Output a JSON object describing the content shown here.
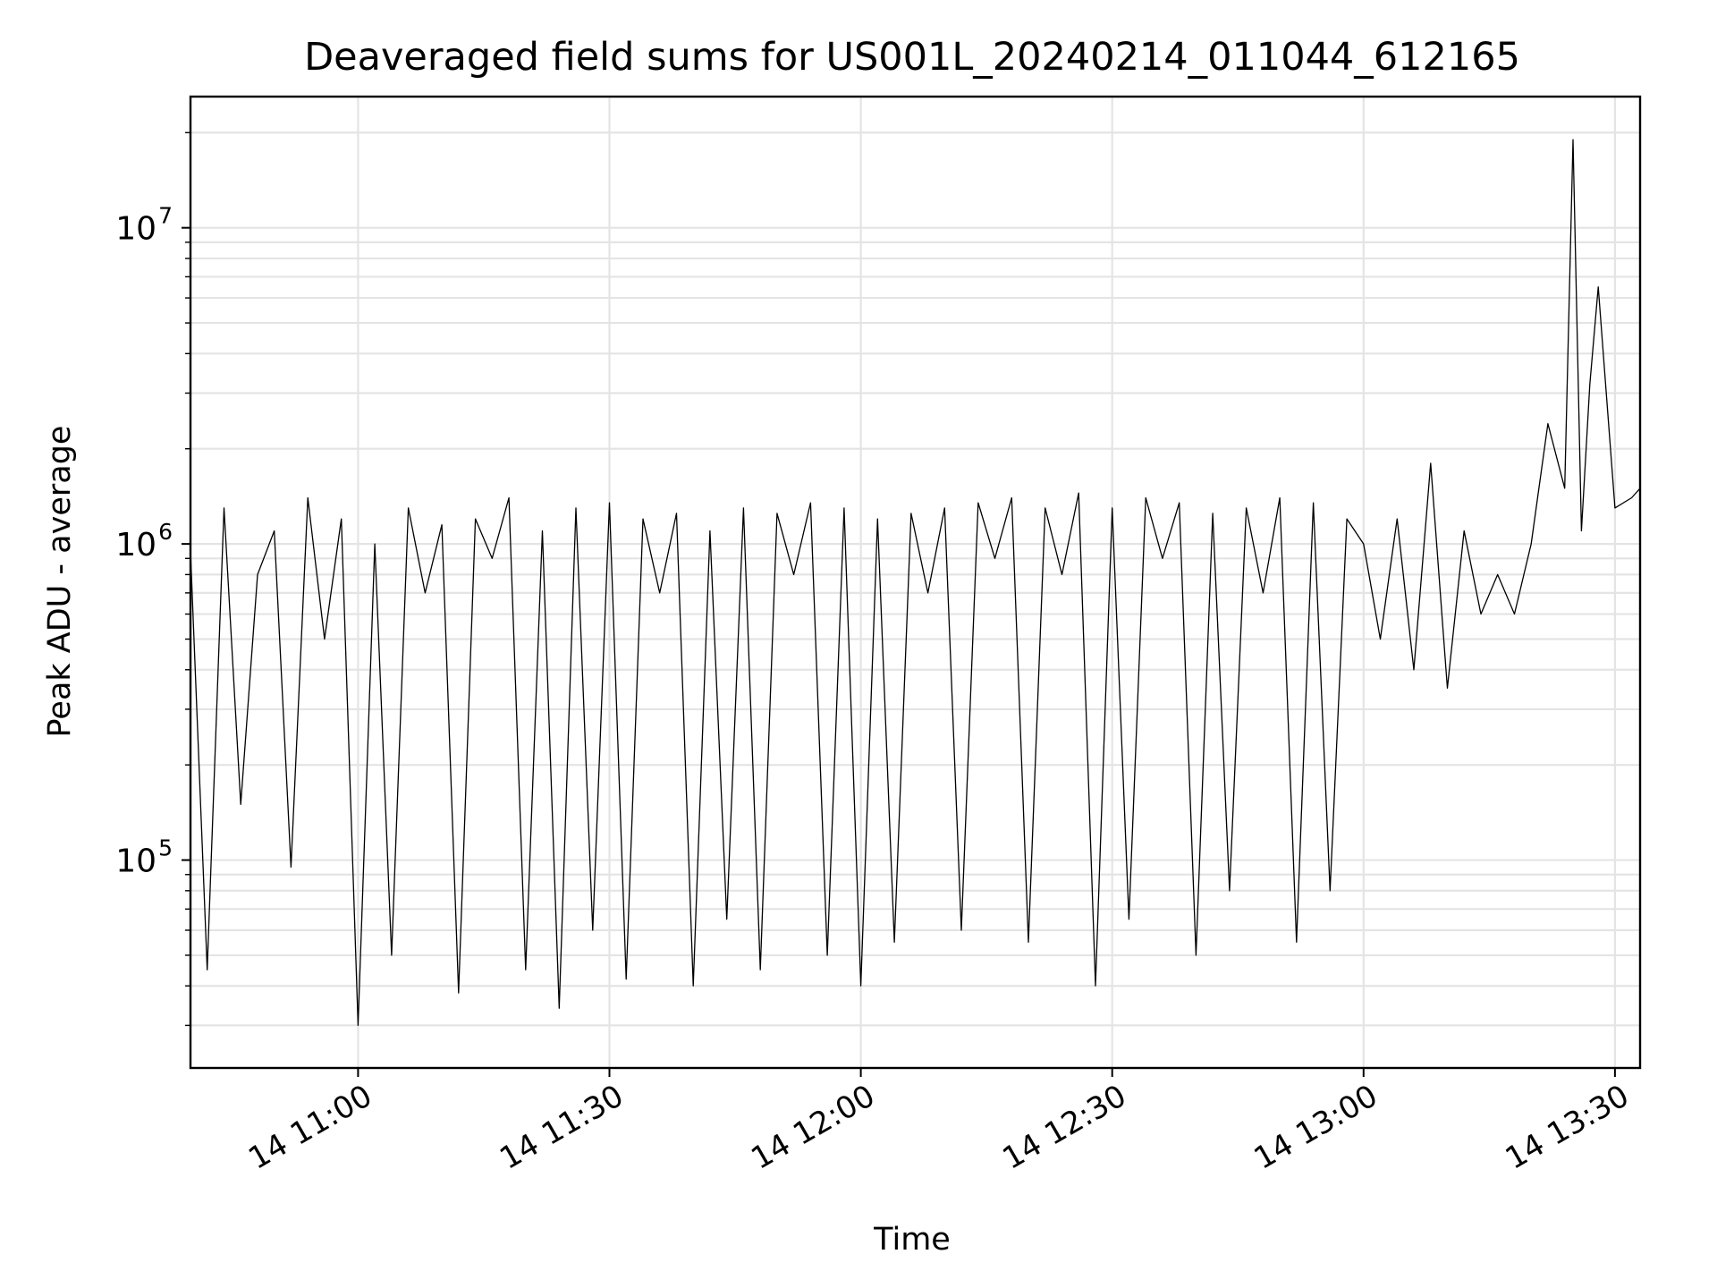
{
  "chart_data": {
    "type": "line",
    "title": "Deaveraged field sums for US001L_20240214_011044_612165",
    "xlabel": "Time",
    "ylabel": "Peak ADU - average",
    "yscale": "log",
    "ylim": [
      22000,
      26000000
    ],
    "xlim": [
      "2024-02-14 10:40",
      "2024-02-14 13:33"
    ],
    "grid": true,
    "line_color": "#000000",
    "x_ticks": [
      "2024-02-14 11:00",
      "2024-02-14 11:30",
      "2024-02-14 12:00",
      "2024-02-14 12:30",
      "2024-02-14 13:00",
      "2024-02-14 13:30"
    ],
    "x_tick_labels": [
      "14 11:00",
      "14 11:30",
      "14 12:00",
      "14 12:30",
      "14 13:00",
      "14 13:30"
    ],
    "y_tick_labels": [
      {
        "value": 100000,
        "base": "10",
        "exp": "5"
      },
      {
        "value": 1000000,
        "base": "10",
        "exp": "6"
      },
      {
        "value": 10000000,
        "base": "10",
        "exp": "7"
      }
    ],
    "series": [
      {
        "x": [
          "10:40",
          "10:42",
          "10:44",
          "10:46",
          "10:48",
          "10:50",
          "10:52",
          "10:54",
          "10:56",
          "10:58",
          "11:00",
          "11:02",
          "11:04",
          "11:06",
          "11:08",
          "11:10",
          "11:12",
          "11:14",
          "11:16",
          "11:18",
          "11:20",
          "11:22",
          "11:24",
          "11:26",
          "11:28",
          "11:30",
          "11:32",
          "11:34",
          "11:36",
          "11:38",
          "11:40",
          "11:42",
          "11:44",
          "11:46",
          "11:48",
          "11:50",
          "11:52",
          "11:54",
          "11:56",
          "11:58",
          "12:00",
          "12:02",
          "12:04",
          "12:06",
          "12:08",
          "12:10",
          "12:12",
          "12:14",
          "12:16",
          "12:18",
          "12:20",
          "12:22",
          "12:24",
          "12:26",
          "12:28",
          "12:30",
          "12:32",
          "12:34",
          "12:36",
          "12:38",
          "12:40",
          "12:42",
          "12:44",
          "12:46",
          "12:48",
          "12:50",
          "12:52",
          "12:54",
          "12:56",
          "12:58",
          "13:00",
          "13:02",
          "13:04",
          "13:06",
          "13:08",
          "13:10",
          "13:12",
          "13:14",
          "13:16",
          "13:18",
          "13:20",
          "13:22",
          "13:24",
          "13:25",
          "13:26",
          "13:27",
          "13:28",
          "13:30",
          "13:32",
          "13:33"
        ],
        "y": [
          950000,
          45000,
          1300000,
          150000,
          800000,
          1100000,
          95000,
          1400000,
          500000,
          1200000,
          30000,
          1000000,
          50000,
          1300000,
          700000,
          1150000,
          38000,
          1200000,
          900000,
          1400000,
          45000,
          1100000,
          34000,
          1300000,
          60000,
          1350000,
          42000,
          1200000,
          700000,
          1250000,
          40000,
          1100000,
          65000,
          1300000,
          45000,
          1250000,
          800000,
          1350000,
          50000,
          1300000,
          40000,
          1200000,
          55000,
          1250000,
          700000,
          1300000,
          60000,
          1350000,
          900000,
          1400000,
          55000,
          1300000,
          800000,
          1450000,
          40000,
          1300000,
          65000,
          1400000,
          900000,
          1350000,
          50000,
          1250000,
          80000,
          1300000,
          700000,
          1400000,
          55000,
          1350000,
          80000,
          1200000,
          1000000,
          500000,
          1200000,
          400000,
          1800000,
          350000,
          1100000,
          600000,
          800000,
          600000,
          1000000,
          2400000,
          1500000,
          19000000,
          1100000,
          3200000,
          6500000,
          1300000,
          1400000,
          1500000
        ]
      }
    ]
  }
}
